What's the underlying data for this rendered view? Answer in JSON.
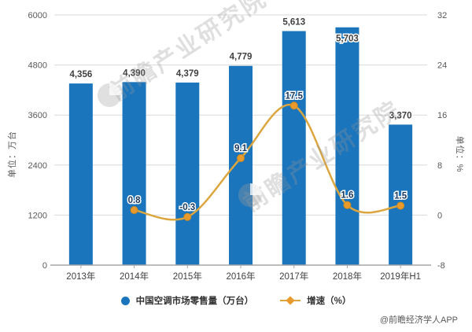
{
  "chart_data": {
    "type": "bar",
    "subtype": "bar-line-combo",
    "categories": [
      "2013年",
      "2014年",
      "2015年",
      "2016年",
      "2017年",
      "2018年",
      "2019年H1"
    ],
    "series": [
      {
        "name": "中国空调市场零售量（万台）",
        "type": "bar",
        "axis": "left",
        "values": [
          4356,
          4390,
          4379,
          4779,
          5613,
          5703,
          3370
        ],
        "labels": [
          "4,356",
          "4,390",
          "4,379",
          "4,779",
          "5,613",
          "5,703",
          "3,370"
        ],
        "color": "#1b75bc"
      },
      {
        "name": "增速（%）",
        "type": "line",
        "axis": "right",
        "values": [
          null,
          0.8,
          -0.3,
          9.1,
          17.5,
          1.6,
          1.5
        ],
        "labels": [
          null,
          "0.8",
          "-0.3",
          "9.1",
          "17.5",
          "1.6",
          "1.5"
        ],
        "color": "#dca63f",
        "marker_color": "#e89b2c"
      }
    ],
    "left_axis": {
      "title": "单位：万台",
      "min": 0,
      "max": 6000,
      "step": 1200,
      "ticks": [
        "0",
        "1200",
        "2400",
        "3600",
        "4800",
        "6000"
      ]
    },
    "right_axis": {
      "title": "单位：%",
      "min": -8,
      "max": 32,
      "step": 8,
      "ticks": [
        "-8",
        "0",
        "8",
        "16",
        "24",
        "32"
      ]
    },
    "grid": true,
    "legend_position": "bottom"
  },
  "style": {
    "bar_color": "#1b75bc",
    "line_color": "#dca63f",
    "marker_color": "#e89b2c",
    "marker_stroke": "#cf8a1e",
    "grid_color": "#d9d9d9",
    "axis_line_color": "#a6a6a6",
    "tick_label_color": "#595959",
    "category_label_color": "#404040",
    "bar_label_color": "#404040",
    "line_label_color": "#17375e"
  },
  "watermark": {
    "brand_text": "前瞻产业研究院",
    "credit": "@前瞻经济学人APP"
  }
}
